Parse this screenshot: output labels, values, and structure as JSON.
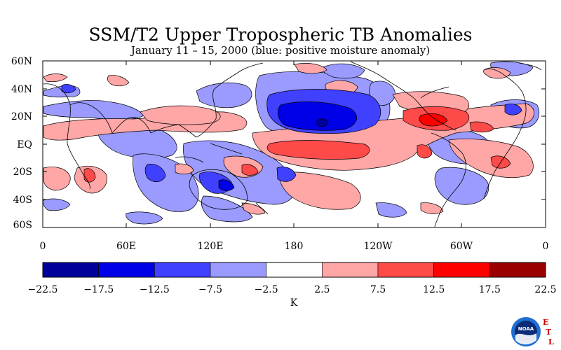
{
  "title": "SSM/T2 Upper Tropospheric TB Anomalies",
  "subtitle": "January 11 – 15, 2000 (blue: positive moisture anomaly)",
  "map": {
    "lat_labels": [
      "60N",
      "40N",
      "20N",
      "EQ",
      "20S",
      "40S",
      "60S"
    ],
    "lon_labels": [
      "0",
      "60E",
      "120E",
      "180",
      "120W",
      "60W",
      "0"
    ]
  },
  "colorbar": {
    "colors": [
      "#00009a",
      "#0000e6",
      "#4040ff",
      "#9a9aff",
      "#ffffff",
      "#ffa6a6",
      "#ff4a4a",
      "#ff0000",
      "#9a0000"
    ],
    "tick_labels": [
      "−22.5",
      "−17.5",
      "−12.5",
      "−7.5",
      "−2.5",
      "2.5",
      "7.5",
      "12.5",
      "17.5",
      "22.5"
    ],
    "unit": "K"
  },
  "logo": {
    "badge_text": "NOAA",
    "lab_letters": [
      "E",
      "T",
      "L"
    ],
    "colors": {
      "outer": "#1f6fd1",
      "inner": "#0a2c78",
      "letters": "#cc0000"
    }
  },
  "anomaly_colors": {
    "dark_blue": "#00009a",
    "blue": "#0000e6",
    "mid_blue": "#4040ff",
    "light_blue": "#9a9aff",
    "light_red": "#ffa6a6",
    "red": "#ff4a4a",
    "bright_red": "#ff0000"
  }
}
